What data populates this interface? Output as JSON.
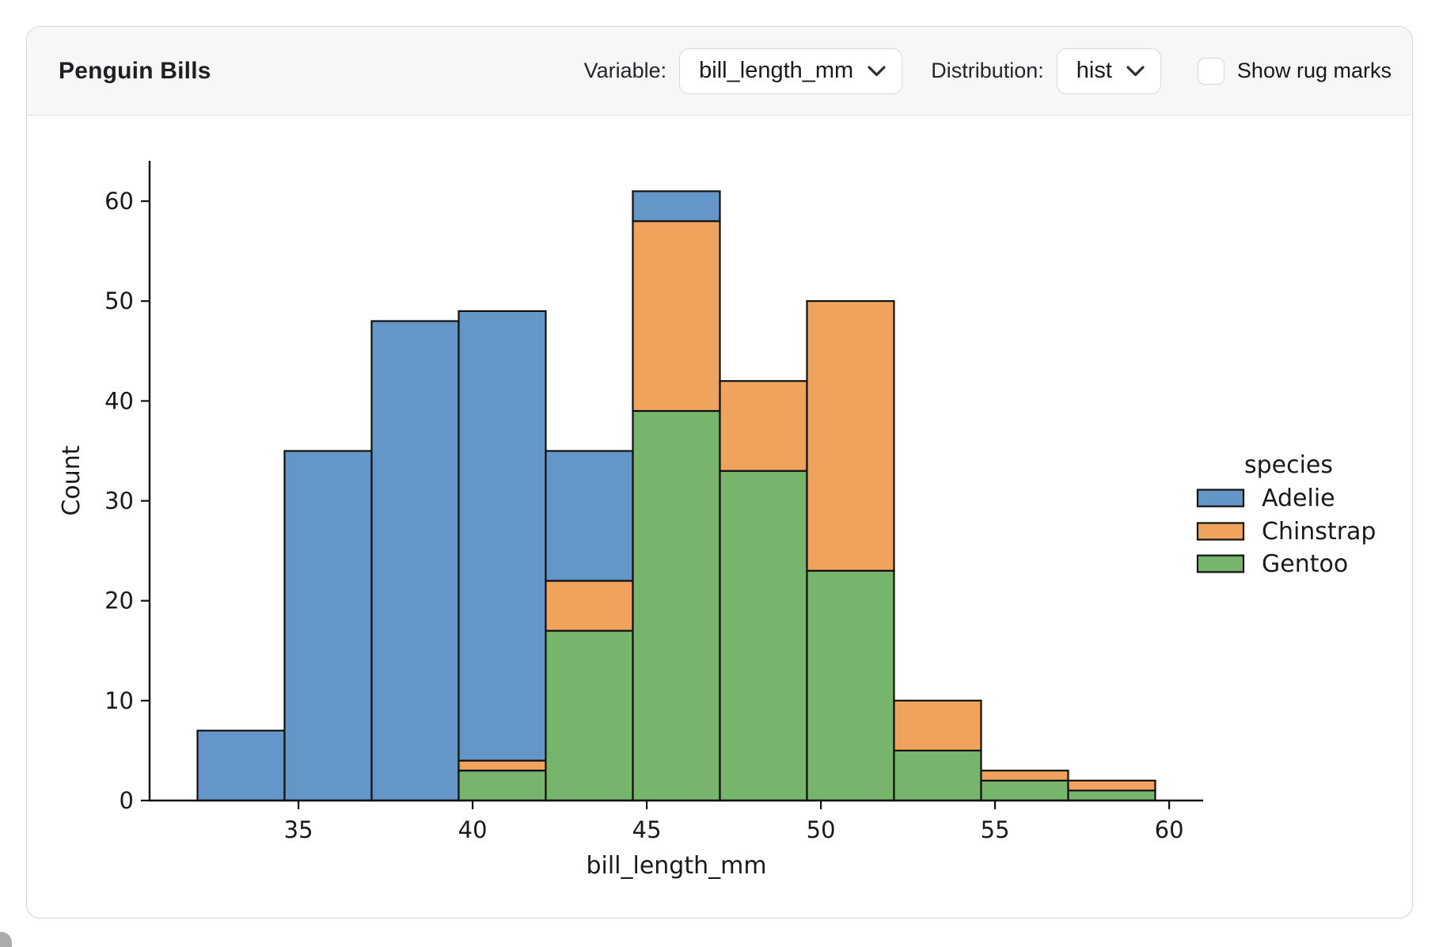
{
  "header": {
    "title": "Penguin Bills",
    "variable_label": "Variable:",
    "variable_value": "bill_length_mm",
    "distribution_label": "Distribution:",
    "distribution_value": "hist",
    "rug_label": "Show rug marks",
    "rug_checked": false
  },
  "chart_data": {
    "type": "bar",
    "subtype": "stacked-histogram",
    "title": "",
    "xlabel": "bill_length_mm",
    "ylabel": "Count",
    "legend_title": "species",
    "legend_position": "right",
    "grid": false,
    "bin_edges": [
      32.1,
      34.6,
      37.1,
      39.6,
      42.1,
      44.6,
      47.1,
      49.6,
      52.1,
      54.6,
      57.1,
      59.6
    ],
    "series": [
      {
        "name": "Adelie",
        "color": "#6497c7",
        "values": [
          7,
          35,
          48,
          45,
          13,
          3,
          0,
          0,
          0,
          0,
          0
        ]
      },
      {
        "name": "Chinstrap",
        "color": "#f0a35c",
        "values": [
          0,
          0,
          0,
          1,
          5,
          19,
          9,
          27,
          5,
          1,
          1
        ]
      },
      {
        "name": "Gentoo",
        "color": "#76b56b",
        "values": [
          0,
          0,
          0,
          3,
          17,
          39,
          33,
          23,
          5,
          2,
          1
        ]
      }
    ],
    "stack_order_bottom_to_top": [
      "Gentoo",
      "Chinstrap",
      "Adelie"
    ],
    "bin_totals": [
      7,
      35,
      48,
      49,
      35,
      61,
      42,
      50,
      10,
      3,
      2
    ],
    "x_ticks": [
      35,
      40,
      45,
      50,
      55,
      60
    ],
    "y_ticks": [
      0,
      10,
      20,
      30,
      40,
      50,
      60
    ],
    "xlim": [
      30.725,
      60.975
    ],
    "ylim": [
      0,
      64.05
    ],
    "bar_edge_color": "#111111",
    "axis_color": "#111111",
    "text_color": "#1a1a1a"
  }
}
